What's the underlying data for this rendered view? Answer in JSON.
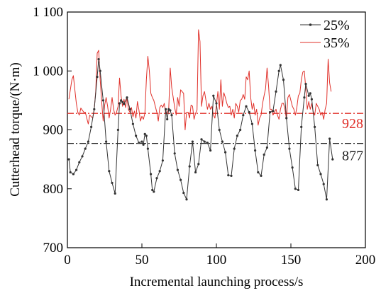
{
  "chart_data": {
    "type": "line",
    "xlabel": "Incremental launching process/s",
    "ylabel": "Cutterhead torque/(N·m)",
    "xlim": [
      0,
      200
    ],
    "ylim": [
      700,
      1100
    ],
    "xticks": [
      "0",
      "50",
      "100",
      "150",
      "200"
    ],
    "yticks": [
      "700",
      "800",
      "900",
      "1 000",
      "1 100"
    ],
    "grid": false,
    "legend_position": "top-right",
    "series": [
      {
        "name": "25%",
        "color": "#333333",
        "marker": "dot",
        "points": [
          [
            1,
            850
          ],
          [
            2,
            828
          ],
          [
            4,
            825
          ],
          [
            6,
            832
          ],
          [
            8,
            845
          ],
          [
            10,
            855
          ],
          [
            12,
            868
          ],
          [
            14,
            880
          ],
          [
            16,
            905
          ],
          [
            18,
            935
          ],
          [
            20,
            990
          ],
          [
            21,
            1020
          ],
          [
            22,
            1000
          ],
          [
            24,
            950
          ],
          [
            26,
            880
          ],
          [
            28,
            830
          ],
          [
            30,
            810
          ],
          [
            32,
            792
          ],
          [
            34,
            900
          ],
          [
            35,
            945
          ],
          [
            36,
            950
          ],
          [
            37,
            947
          ],
          [
            38,
            944
          ],
          [
            40,
            955
          ],
          [
            42,
            935
          ],
          [
            44,
            910
          ],
          [
            46,
            890
          ],
          [
            48,
            878
          ],
          [
            50,
            880
          ],
          [
            51,
            875
          ],
          [
            52,
            893
          ],
          [
            53,
            890
          ],
          [
            54,
            868
          ],
          [
            56,
            825
          ],
          [
            57,
            798
          ],
          [
            58,
            795
          ],
          [
            60,
            818
          ],
          [
            62,
            830
          ],
          [
            64,
            848
          ],
          [
            66,
            935
          ],
          [
            67,
            918
          ],
          [
            68,
            935
          ],
          [
            69,
            933
          ],
          [
            70,
            925
          ],
          [
            72,
            860
          ],
          [
            74,
            832
          ],
          [
            76,
            815
          ],
          [
            78,
            793
          ],
          [
            80,
            782
          ],
          [
            82,
            838
          ],
          [
            84,
            880
          ],
          [
            86,
            828
          ],
          [
            88,
            842
          ],
          [
            90,
            884
          ],
          [
            92,
            880
          ],
          [
            94,
            878
          ],
          [
            96,
            865
          ],
          [
            98,
            958
          ],
          [
            100,
            945
          ],
          [
            102,
            900
          ],
          [
            104,
            880
          ],
          [
            106,
            862
          ],
          [
            108,
            823
          ],
          [
            110,
            822
          ],
          [
            112,
            868
          ],
          [
            114,
            890
          ],
          [
            116,
            900
          ],
          [
            118,
            925
          ],
          [
            120,
            940
          ],
          [
            122,
            930
          ],
          [
            124,
            910
          ],
          [
            126,
            865
          ],
          [
            128,
            828
          ],
          [
            130,
            822
          ],
          [
            132,
            858
          ],
          [
            134,
            870
          ],
          [
            136,
            930
          ],
          [
            138,
            932
          ],
          [
            140,
            965
          ],
          [
            142,
            1000
          ],
          [
            143,
            1010
          ],
          [
            145,
            985
          ],
          [
            147,
            920
          ],
          [
            149,
            868
          ],
          [
            151,
            836
          ],
          [
            153,
            800
          ],
          [
            155,
            798
          ],
          [
            157,
            905
          ],
          [
            159,
            955
          ],
          [
            160,
            978
          ],
          [
            162,
            958
          ],
          [
            163,
            962
          ],
          [
            164,
            952
          ],
          [
            166,
            905
          ],
          [
            168,
            840
          ],
          [
            170,
            825
          ],
          [
            172,
            808
          ],
          [
            174,
            782
          ],
          [
            176,
            885
          ],
          [
            178,
            850
          ]
        ]
      },
      {
        "name": "35%",
        "color": "#e0302a",
        "marker": "none",
        "points": [
          [
            1,
            952
          ],
          [
            3,
            985
          ],
          [
            4,
            992
          ],
          [
            5,
            968
          ],
          [
            6,
            945
          ],
          [
            7,
            930
          ],
          [
            8,
            925
          ],
          [
            9,
            937
          ],
          [
            11,
            930
          ],
          [
            12,
            930
          ],
          [
            13,
            920
          ],
          [
            14,
            910
          ],
          [
            15,
            925
          ],
          [
            17,
            920
          ],
          [
            18,
            935
          ],
          [
            19,
            965
          ],
          [
            20,
            1030
          ],
          [
            21,
            1035
          ],
          [
            22,
            985
          ],
          [
            23,
            948
          ],
          [
            24,
            915
          ],
          [
            25,
            942
          ],
          [
            26,
            955
          ],
          [
            27,
            940
          ],
          [
            28,
            920
          ],
          [
            29,
            935
          ],
          [
            30,
            955
          ],
          [
            31,
            935
          ],
          [
            32,
            925
          ],
          [
            33,
            930
          ],
          [
            34,
            940
          ],
          [
            35,
            988
          ],
          [
            36,
            958
          ],
          [
            37,
            940
          ],
          [
            38,
            952
          ],
          [
            39,
            938
          ],
          [
            40,
            955
          ],
          [
            41,
            934
          ],
          [
            42,
            930
          ],
          [
            43,
            938
          ],
          [
            44,
            922
          ],
          [
            45,
            932
          ],
          [
            46,
            920
          ],
          [
            47,
            948
          ],
          [
            48,
            934
          ],
          [
            49,
            915
          ],
          [
            50,
            923
          ],
          [
            51,
            918
          ],
          [
            52,
            928
          ],
          [
            53,
            985
          ],
          [
            54,
            1025
          ],
          [
            55,
            1000
          ],
          [
            56,
            962
          ],
          [
            57,
            955
          ],
          [
            58,
            950
          ],
          [
            59,
            940
          ],
          [
            60,
            930
          ],
          [
            61,
            915
          ],
          [
            62,
            938
          ],
          [
            63,
            942
          ],
          [
            64,
            938
          ],
          [
            65,
            945
          ],
          [
            66,
            928
          ],
          [
            67,
            930
          ],
          [
            68,
            935
          ],
          [
            69,
            1005
          ],
          [
            70,
            972
          ],
          [
            71,
            955
          ],
          [
            72,
            938
          ],
          [
            73,
            925
          ],
          [
            74,
            955
          ],
          [
            75,
            940
          ],
          [
            76,
            968
          ],
          [
            77,
            965
          ],
          [
            78,
            962
          ],
          [
            79,
            900
          ],
          [
            80,
            930
          ],
          [
            81,
            930
          ],
          [
            82,
            920
          ],
          [
            83,
            942
          ],
          [
            84,
            940
          ],
          [
            85,
            918
          ],
          [
            86,
            928
          ],
          [
            87,
            934
          ],
          [
            88,
            1070
          ],
          [
            89,
            1050
          ],
          [
            90,
            940
          ],
          [
            91,
            958
          ],
          [
            92,
            965
          ],
          [
            93,
            950
          ],
          [
            94,
            935
          ],
          [
            95,
            945
          ],
          [
            96,
            935
          ],
          [
            97,
            940
          ],
          [
            98,
            925
          ],
          [
            99,
            920
          ],
          [
            100,
            942
          ],
          [
            101,
            965
          ],
          [
            102,
            935
          ],
          [
            103,
            985
          ],
          [
            104,
            940
          ],
          [
            105,
            963
          ],
          [
            106,
            955
          ],
          [
            107,
            945
          ],
          [
            108,
            938
          ],
          [
            109,
            940
          ],
          [
            110,
            925
          ],
          [
            111,
            935
          ],
          [
            112,
            920
          ],
          [
            113,
            945
          ],
          [
            114,
            940
          ],
          [
            115,
            930
          ],
          [
            116,
            950
          ],
          [
            117,
            952
          ],
          [
            118,
            960
          ],
          [
            119,
            952
          ],
          [
            120,
            990
          ],
          [
            121,
            985
          ],
          [
            122,
            1000
          ],
          [
            123,
            955
          ],
          [
            124,
            935
          ],
          [
            125,
            945
          ],
          [
            126,
            925
          ],
          [
            127,
            935
          ],
          [
            128,
            908
          ],
          [
            129,
            920
          ],
          [
            130,
            925
          ],
          [
            131,
            945
          ],
          [
            132,
            958
          ],
          [
            133,
            970
          ],
          [
            134,
            1005
          ],
          [
            135,
            975
          ],
          [
            136,
            935
          ],
          [
            137,
            935
          ],
          [
            138,
            925
          ],
          [
            139,
            930
          ],
          [
            140,
            935
          ],
          [
            141,
            925
          ],
          [
            142,
            918
          ],
          [
            143,
            935
          ],
          [
            144,
            945
          ],
          [
            145,
            945
          ],
          [
            146,
            935
          ],
          [
            147,
            918
          ],
          [
            148,
            955
          ],
          [
            149,
            960
          ],
          [
            150,
            950
          ],
          [
            151,
            940
          ],
          [
            152,
            935
          ],
          [
            153,
            925
          ],
          [
            154,
            938
          ],
          [
            155,
            958
          ],
          [
            156,
            962
          ],
          [
            157,
            985
          ],
          [
            158,
            998
          ],
          [
            159,
            1000
          ],
          [
            160,
            970
          ],
          [
            161,
            935
          ],
          [
            162,
            948
          ],
          [
            163,
            935
          ],
          [
            164,
            945
          ],
          [
            165,
            930
          ],
          [
            166,
            925
          ],
          [
            167,
            945
          ],
          [
            168,
            940
          ],
          [
            169,
            935
          ],
          [
            170,
            925
          ],
          [
            171,
            930
          ],
          [
            172,
            918
          ],
          [
            173,
            935
          ],
          [
            174,
            945
          ],
          [
            175,
            1020
          ],
          [
            176,
            980
          ],
          [
            177,
            965
          ]
        ]
      }
    ],
    "reference_lines": [
      {
        "value": 928,
        "label": "928",
        "color": "#e0302a",
        "style": "dash-dot"
      },
      {
        "value": 877,
        "label": "877",
        "color": "#222222",
        "style": "dash-dot"
      }
    ]
  }
}
